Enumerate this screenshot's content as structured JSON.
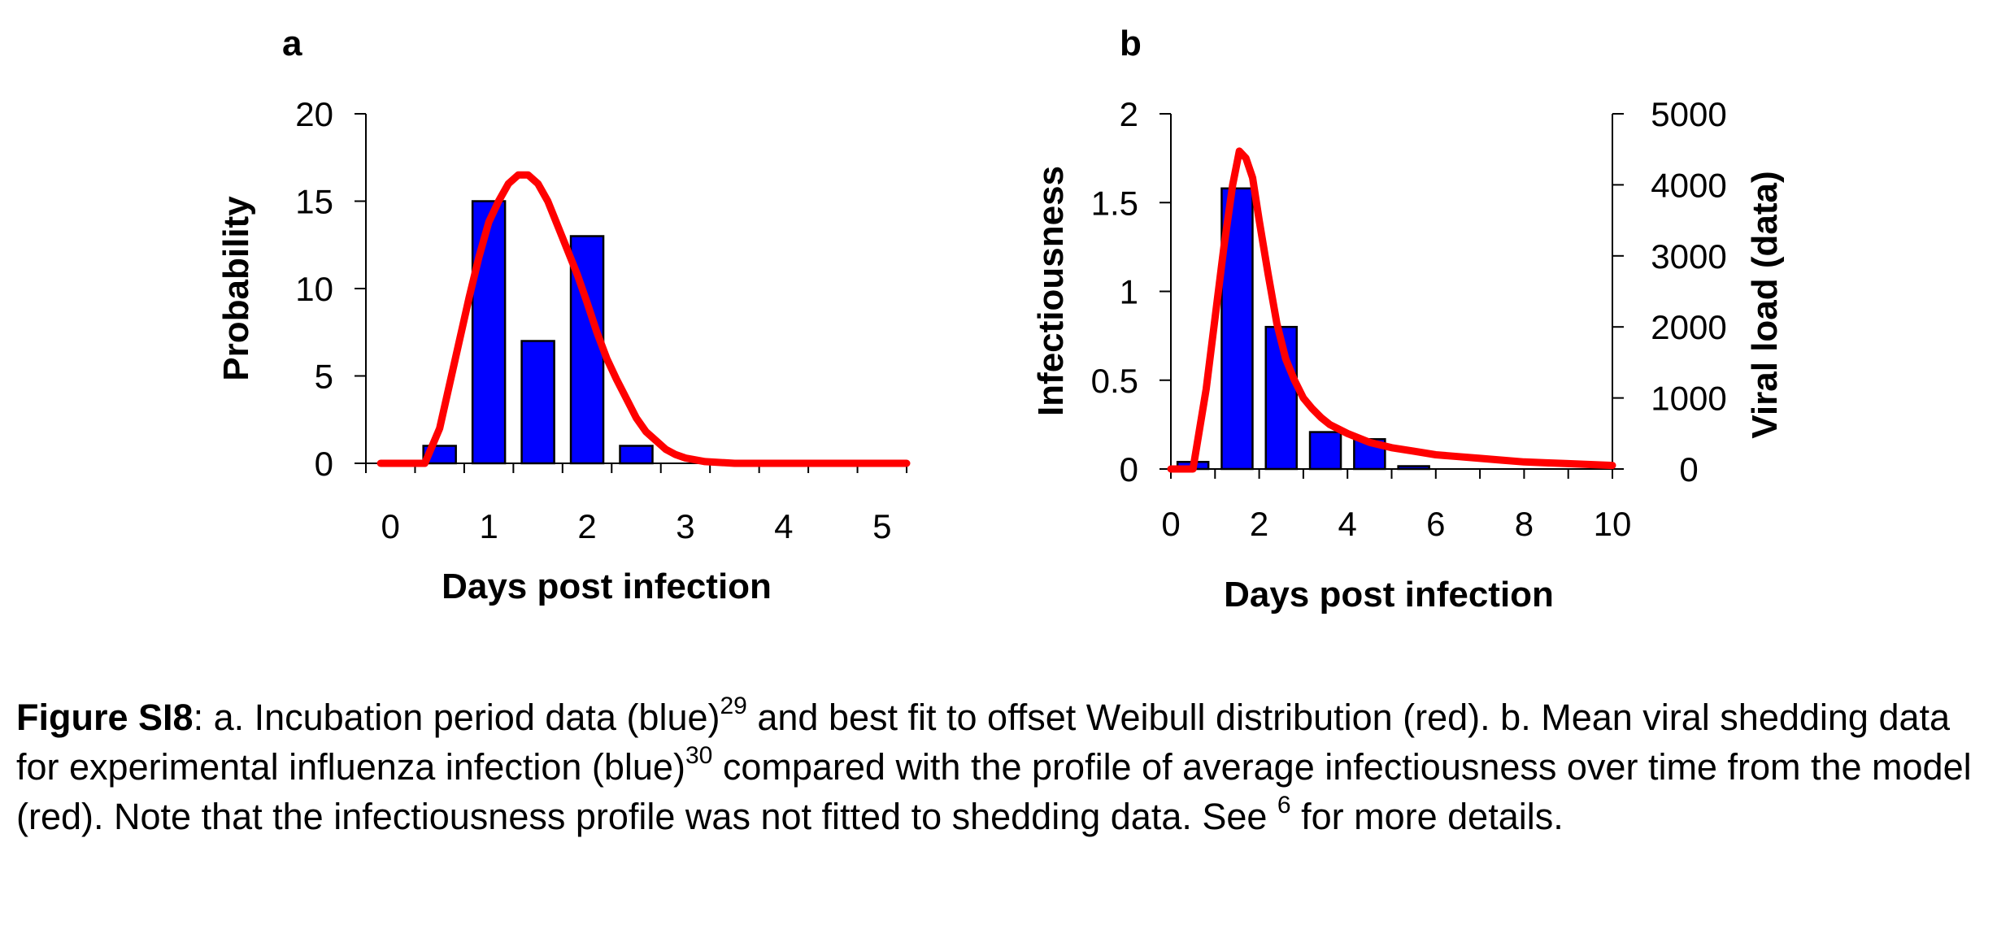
{
  "chart_data": [
    {
      "type": "bar",
      "panel_label": "a",
      "title": "",
      "xlabel": "Days post infection",
      "ylabel": "Probability",
      "xlim": [
        -0.25,
        5.25
      ],
      "ylim": [
        0,
        20
      ],
      "xticks": [
        0,
        1,
        2,
        3,
        4,
        5
      ],
      "yticks": [
        0,
        5,
        10,
        15,
        20
      ],
      "grid": false,
      "series": [
        {
          "name": "",
          "type": "bar",
          "color": "#0000ff",
          "x": [
            0,
            0.5,
            1,
            1.5,
            2,
            2.5,
            3,
            3.5,
            4,
            4.5,
            5
          ],
          "values": [
            0,
            1,
            15,
            7,
            13,
            1,
            0,
            0,
            0,
            0,
            0
          ]
        },
        {
          "name": "",
          "type": "line",
          "color": "#ff0000",
          "x": [
            -0.1,
            0.35,
            0.5,
            0.6,
            0.7,
            0.8,
            0.9,
            1.0,
            1.1,
            1.2,
            1.3,
            1.4,
            1.5,
            1.6,
            1.7,
            1.8,
            1.9,
            2.0,
            2.1,
            2.2,
            2.3,
            2.4,
            2.5,
            2.6,
            2.7,
            2.8,
            2.9,
            3.0,
            3.2,
            3.5,
            4.0,
            4.5,
            5.0,
            5.25
          ],
          "values": [
            0,
            0,
            2.0,
            4.5,
            7.0,
            9.5,
            11.8,
            13.8,
            15.0,
            16.0,
            16.5,
            16.5,
            16.0,
            15.0,
            13.6,
            12.2,
            10.8,
            9.2,
            7.5,
            6.0,
            4.8,
            3.7,
            2.6,
            1.8,
            1.3,
            0.8,
            0.5,
            0.3,
            0.1,
            0,
            0,
            0,
            0,
            0
          ]
        }
      ]
    },
    {
      "type": "bar",
      "panel_label": "b",
      "title": "",
      "xlabel": "Days post infection",
      "ylabel": "Infectiousness",
      "y2label": "Viral load (data)",
      "xlim": [
        0,
        10
      ],
      "ylim": [
        0,
        2
      ],
      "y2lim": [
        0,
        5000
      ],
      "xticks": [
        0,
        2,
        4,
        6,
        8,
        10
      ],
      "yticks": [
        0,
        0.5,
        1,
        1.5,
        2
      ],
      "y2ticks": [
        0,
        1000,
        2000,
        3000,
        4000,
        5000
      ],
      "grid": false,
      "series": [
        {
          "name": "",
          "type": "bar",
          "axis": "y2",
          "color": "#0000ff",
          "x": [
            0.5,
            1.5,
            2.5,
            3.5,
            4.5,
            5.5
          ],
          "values": [
            100,
            3950,
            2000,
            520,
            420,
            40
          ]
        },
        {
          "name": "",
          "type": "line",
          "axis": "y",
          "color": "#ff0000",
          "x": [
            0,
            0.5,
            0.8,
            1.0,
            1.2,
            1.4,
            1.55,
            1.7,
            1.85,
            2.0,
            2.2,
            2.4,
            2.6,
            2.8,
            3.0,
            3.2,
            3.4,
            3.6,
            4.0,
            4.5,
            5.0,
            5.5,
            6.0,
            6.5,
            7.0,
            7.5,
            8.0,
            8.5,
            9.0,
            10.0
          ],
          "values": [
            0,
            0,
            0.45,
            0.85,
            1.25,
            1.6,
            1.79,
            1.75,
            1.64,
            1.4,
            1.1,
            0.82,
            0.62,
            0.5,
            0.4,
            0.34,
            0.29,
            0.25,
            0.2,
            0.15,
            0.12,
            0.1,
            0.08,
            0.07,
            0.06,
            0.05,
            0.04,
            0.035,
            0.03,
            0.02
          ]
        }
      ]
    }
  ],
  "caption": {
    "label": "Figure SI8",
    "part1": ": a. Incubation period data (blue)",
    "ref1": "29",
    "part2": " and best fit to offset Weibull distribution (red). b. Mean viral shedding data for experimental influenza infection (blue)",
    "ref2": "30",
    "part3": " compared with the profile of average infectiousness over time from the model (red). Note that the infectiousness profile was not fitted to shedding data. See ",
    "ref3": "6",
    "part4": " for more details."
  }
}
